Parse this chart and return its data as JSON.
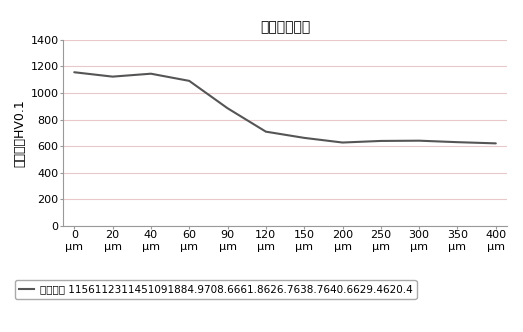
{
  "title": "断面硬度梯度",
  "ylabel": "维氏硬度HV0.1",
  "legend_label": "维氏硬度",
  "x_labels": [
    "0\nμm",
    "20\nμm",
    "40\nμm",
    "60\nμm",
    "90\nμm",
    "120\nμm",
    "150\nμm",
    "200\nμm",
    "250\nμm",
    "300\nμm",
    "350\nμm",
    "400\nμm"
  ],
  "x_positions": [
    0,
    1,
    2,
    3,
    4,
    5,
    6,
    7,
    8,
    9,
    10,
    11
  ],
  "y_values": [
    1156,
    1123,
    1145,
    1091,
    884.9,
    708.6,
    661.8,
    626.7,
    638.7,
    640.6,
    629.4,
    620.4
  ],
  "legend_values": [
    "1156",
    "1123",
    "1145",
    "1091",
    "884.9",
    "708.6",
    "661.8",
    "626.7",
    "638.7",
    "640.6",
    "629.4",
    "620.4"
  ],
  "ylim": [
    0,
    1400
  ],
  "yticks": [
    0,
    200,
    400,
    600,
    800,
    1000,
    1200,
    1400
  ],
  "line_color": "#555555",
  "grid_color": "#e8c8c8",
  "bg_color": "#ffffff",
  "title_fontsize": 17,
  "axis_label_fontsize": 9,
  "tick_fontsize": 8,
  "legend_fontsize": 7.5
}
